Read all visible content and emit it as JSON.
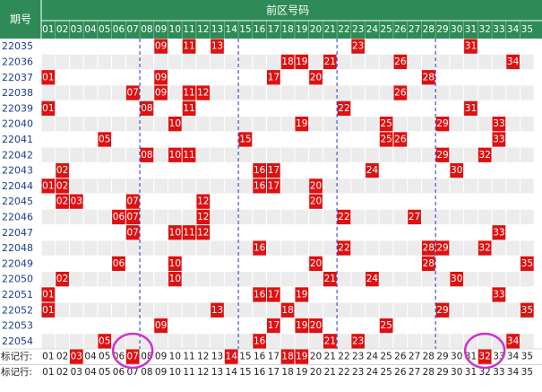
{
  "header": {
    "period_label": "期号",
    "zone_title": "前区号码",
    "numbers": [
      "01",
      "02",
      "03",
      "04",
      "05",
      "06",
      "07",
      "08",
      "09",
      "10",
      "11",
      "12",
      "13",
      "14",
      "15",
      "16",
      "17",
      "18",
      "19",
      "20",
      "21",
      "22",
      "23",
      "24",
      "25",
      "26",
      "27",
      "28",
      "29",
      "30",
      "31",
      "32",
      "33",
      "34",
      "35"
    ]
  },
  "rows": [
    {
      "issue": "22035",
      "picks": [
        9,
        11,
        13,
        23,
        31
      ]
    },
    {
      "issue": "22036",
      "picks": [
        18,
        19,
        21,
        26,
        34
      ]
    },
    {
      "issue": "22037",
      "picks": [
        1,
        9,
        17,
        20,
        28
      ]
    },
    {
      "issue": "22038",
      "picks": [
        7,
        9,
        11,
        12,
        26
      ]
    },
    {
      "issue": "22039",
      "picks": [
        1,
        8,
        11,
        22,
        31
      ]
    },
    {
      "issue": "22040",
      "picks": [
        10,
        19,
        25,
        29,
        33
      ]
    },
    {
      "issue": "22041",
      "picks": [
        5,
        15,
        25,
        26,
        33
      ]
    },
    {
      "issue": "22042",
      "picks": [
        8,
        10,
        11,
        29,
        32
      ]
    },
    {
      "issue": "22043",
      "picks": [
        2,
        16,
        17,
        24,
        30
      ]
    },
    {
      "issue": "22044",
      "picks": [
        1,
        2,
        16,
        17,
        20
      ]
    },
    {
      "issue": "22045",
      "picks": [
        2,
        3,
        7,
        12,
        20
      ]
    },
    {
      "issue": "22046",
      "picks": [
        6,
        7,
        12,
        22,
        27
      ]
    },
    {
      "issue": "22047",
      "picks": [
        7,
        10,
        11,
        12,
        33
      ]
    },
    {
      "issue": "22048",
      "picks": [
        16,
        22,
        28,
        29,
        32
      ]
    },
    {
      "issue": "22049",
      "picks": [
        6,
        10,
        20,
        28,
        35
      ]
    },
    {
      "issue": "22050",
      "picks": [
        2,
        10,
        21,
        24,
        30
      ]
    },
    {
      "issue": "22051",
      "picks": [
        1,
        16,
        17,
        19,
        33
      ]
    },
    {
      "issue": "22052",
      "picks": [
        1,
        13,
        18,
        29,
        35
      ]
    },
    {
      "issue": "22053",
      "picks": [
        9,
        17,
        19,
        20,
        25
      ]
    },
    {
      "issue": "22054",
      "picks": [
        5,
        16,
        21,
        23,
        34
      ]
    }
  ],
  "footer": [
    {
      "label": "标记行:",
      "marked": [
        3,
        7,
        14,
        18,
        19,
        32
      ]
    },
    {
      "label": "标记行:",
      "marked": []
    }
  ],
  "highlight_circles": [
    {
      "row": "22054",
      "number": 7
    },
    {
      "row": "22054",
      "number": 32
    }
  ],
  "colors": {
    "header_bg": "#2e8b57",
    "header_text": "#ffffff",
    "cell_bg": "#ececec",
    "hit_bg": "#dd1111",
    "hit_text": "#ffffff",
    "issue_text": "#1a3d8f",
    "divider": "#2233cc",
    "circle": "#cc33cc",
    "plain_text": "#222222"
  }
}
